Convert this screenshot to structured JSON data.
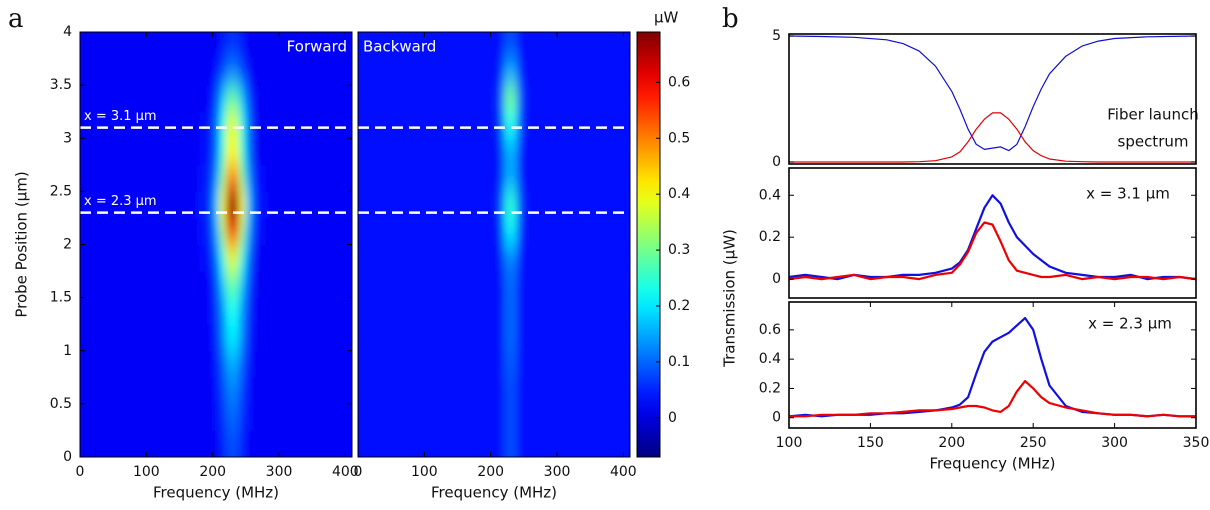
{
  "chart_data": [
    {
      "type": "heatmap",
      "panel": "a",
      "title": "Forward",
      "xlabel": "Frequency (MHz)",
      "ylabel": "Probe Position (μm)",
      "xbins": [
        0,
        180,
        200,
        210,
        220,
        230,
        240,
        250,
        260,
        280,
        410
      ],
      "ybins": [
        0,
        0.25,
        0.5,
        0.75,
        1,
        1.25,
        1.5,
        1.75,
        2,
        2.25,
        2.5,
        2.75,
        3,
        3.25,
        3.5,
        3.75,
        4
      ],
      "z": [
        [
          0.02,
          0.02,
          0.02,
          0.05,
          0.08,
          0.08,
          0.05,
          0.02,
          0.02,
          0.02
        ],
        [
          0.02,
          0.02,
          0.03,
          0.06,
          0.1,
          0.1,
          0.06,
          0.03,
          0.02,
          0.02
        ],
        [
          0.02,
          0.02,
          0.03,
          0.07,
          0.12,
          0.12,
          0.07,
          0.03,
          0.02,
          0.02
        ],
        [
          0.02,
          0.02,
          0.04,
          0.09,
          0.15,
          0.15,
          0.09,
          0.04,
          0.02,
          0.02
        ],
        [
          0.02,
          0.02,
          0.05,
          0.12,
          0.2,
          0.2,
          0.12,
          0.05,
          0.02,
          0.02
        ],
        [
          0.02,
          0.02,
          0.06,
          0.13,
          0.22,
          0.22,
          0.13,
          0.06,
          0.02,
          0.02
        ],
        [
          0.02,
          0.02,
          0.07,
          0.17,
          0.28,
          0.28,
          0.17,
          0.07,
          0.02,
          0.02
        ],
        [
          0.02,
          0.03,
          0.1,
          0.23,
          0.38,
          0.38,
          0.23,
          0.1,
          0.02,
          0.02
        ],
        [
          0.02,
          0.04,
          0.14,
          0.33,
          0.55,
          0.55,
          0.33,
          0.14,
          0.03,
          0.02
        ],
        [
          0.02,
          0.05,
          0.17,
          0.41,
          0.68,
          0.68,
          0.41,
          0.17,
          0.04,
          0.02
        ],
        [
          0.02,
          0.04,
          0.13,
          0.3,
          0.5,
          0.5,
          0.3,
          0.13,
          0.03,
          0.02
        ],
        [
          0.02,
          0.03,
          0.1,
          0.24,
          0.4,
          0.4,
          0.24,
          0.1,
          0.02,
          0.02
        ],
        [
          0.02,
          0.03,
          0.1,
          0.23,
          0.38,
          0.38,
          0.23,
          0.1,
          0.02,
          0.02
        ],
        [
          0.02,
          0.02,
          0.07,
          0.17,
          0.28,
          0.28,
          0.17,
          0.07,
          0.02,
          0.02
        ],
        [
          0.02,
          0.02,
          0.03,
          0.07,
          0.12,
          0.12,
          0.07,
          0.03,
          0.02,
          0.02
        ],
        [
          0.02,
          0.02,
          0.02,
          0.04,
          0.06,
          0.06,
          0.04,
          0.02,
          0.02,
          0.02
        ]
      ],
      "xlim": [
        0,
        410
      ],
      "ylim": [
        0,
        4
      ],
      "xticks": [
        0,
        100,
        200,
        300,
        400
      ],
      "yticks": [
        0,
        0.5,
        1,
        1.5,
        2,
        2.5,
        3,
        3.5,
        4
      ],
      "hlines": [
        3.1,
        2.3
      ],
      "hline_labels": [
        "x = 3.1 μm",
        "x = 2.3 μm"
      ],
      "colormap": "jet",
      "clim": [
        -0.07,
        0.69
      ],
      "cticks": [
        0,
        0.1,
        0.2,
        0.3,
        0.4,
        0.5,
        0.6
      ],
      "clabel": "μW"
    },
    {
      "type": "heatmap",
      "title": "Backward",
      "xlabel": "Frequency (MHz)",
      "xbins": [
        0,
        180,
        200,
        210,
        220,
        230,
        240,
        250,
        260,
        280,
        410
      ],
      "ybins": [
        0,
        0.25,
        0.5,
        0.75,
        1,
        1.25,
        1.5,
        1.75,
        2,
        2.25,
        2.5,
        2.75,
        3,
        3.25,
        3.5,
        3.75,
        4
      ],
      "z": [
        [
          0.03,
          0.03,
          0.03,
          0.03,
          0.08,
          0.08,
          0.03,
          0.03,
          0.03,
          0.03
        ],
        [
          0.03,
          0.03,
          0.03,
          0.03,
          0.08,
          0.08,
          0.03,
          0.03,
          0.03,
          0.03
        ],
        [
          0.03,
          0.03,
          0.03,
          0.03,
          0.08,
          0.08,
          0.03,
          0.03,
          0.03,
          0.03
        ],
        [
          0.03,
          0.03,
          0.03,
          0.03,
          0.09,
          0.09,
          0.03,
          0.03,
          0.03,
          0.03
        ],
        [
          0.03,
          0.03,
          0.03,
          0.03,
          0.1,
          0.1,
          0.03,
          0.03,
          0.03,
          0.03
        ],
        [
          0.03,
          0.03,
          0.03,
          0.03,
          0.1,
          0.1,
          0.03,
          0.03,
          0.03,
          0.03
        ],
        [
          0.03,
          0.03,
          0.03,
          0.03,
          0.1,
          0.1,
          0.03,
          0.03,
          0.03,
          0.03
        ],
        [
          0.03,
          0.03,
          0.03,
          0.04,
          0.12,
          0.12,
          0.04,
          0.03,
          0.03,
          0.03
        ],
        [
          0.03,
          0.03,
          0.03,
          0.06,
          0.2,
          0.2,
          0.06,
          0.03,
          0.03,
          0.03
        ],
        [
          0.03,
          0.03,
          0.03,
          0.08,
          0.25,
          0.25,
          0.08,
          0.03,
          0.03,
          0.03
        ],
        [
          0.03,
          0.03,
          0.03,
          0.05,
          0.15,
          0.15,
          0.05,
          0.03,
          0.03,
          0.03
        ],
        [
          0.03,
          0.03,
          0.03,
          0.05,
          0.15,
          0.15,
          0.05,
          0.03,
          0.03,
          0.03
        ],
        [
          0.03,
          0.03,
          0.03,
          0.07,
          0.22,
          0.22,
          0.07,
          0.03,
          0.03,
          0.03
        ],
        [
          0.03,
          0.03,
          0.03,
          0.09,
          0.3,
          0.3,
          0.09,
          0.03,
          0.03,
          0.03
        ],
        [
          0.03,
          0.03,
          0.03,
          0.05,
          0.15,
          0.15,
          0.05,
          0.03,
          0.03,
          0.03
        ],
        [
          0.03,
          0.03,
          0.03,
          0.03,
          0.08,
          0.08,
          0.03,
          0.03,
          0.03,
          0.03
        ]
      ],
      "xlim": [
        0,
        410
      ],
      "ylim": [
        0,
        4
      ],
      "xticks": [
        0,
        100,
        200,
        300,
        400
      ],
      "hlines": [
        3.1,
        2.3
      ],
      "colormap": "jet",
      "clim": [
        -0.07,
        0.69
      ]
    },
    {
      "type": "line",
      "panel": "b",
      "annotation": [
        "Fiber launch",
        "spectrum"
      ],
      "x": [
        100,
        120,
        140,
        160,
        170,
        180,
        190,
        200,
        205,
        210,
        215,
        220,
        225,
        230,
        235,
        240,
        245,
        250,
        255,
        260,
        270,
        280,
        290,
        300,
        320,
        350
      ],
      "series": [
        {
          "color": "#1010d0",
          "values": [
            5,
            4.98,
            4.95,
            4.85,
            4.7,
            4.4,
            3.8,
            2.8,
            2.1,
            1.3,
            0.7,
            0.5,
            0.55,
            0.6,
            0.45,
            0.7,
            1.4,
            2.2,
            2.9,
            3.5,
            4.2,
            4.6,
            4.8,
            4.9,
            4.97,
            5
          ]
        },
        {
          "color": "#e00000",
          "values": [
            0,
            0,
            0,
            0,
            0,
            0.01,
            0.05,
            0.2,
            0.4,
            0.8,
            1.3,
            1.7,
            1.95,
            1.95,
            1.7,
            1.3,
            0.8,
            0.45,
            0.25,
            0.12,
            0.03,
            0.01,
            0,
            0,
            0,
            0
          ]
        }
      ],
      "xlim": [
        100,
        350
      ],
      "ylim": [
        -0.08,
        5.08
      ],
      "yticks": [
        0,
        5
      ]
    },
    {
      "type": "line",
      "annotation": [
        "x = 3.1 μm"
      ],
      "ylabel": "Transmission (μW)",
      "x": [
        100,
        110,
        120,
        130,
        140,
        150,
        160,
        170,
        180,
        190,
        200,
        205,
        210,
        215,
        220,
        225,
        230,
        235,
        240,
        245,
        250,
        255,
        260,
        270,
        280,
        290,
        300,
        310,
        320,
        330,
        340,
        350
      ],
      "series": [
        {
          "color": "#1010e0",
          "values": [
            0.01,
            0.02,
            0.01,
            0,
            0.02,
            0.01,
            0.01,
            0.02,
            0.02,
            0.03,
            0.05,
            0.08,
            0.14,
            0.24,
            0.34,
            0.4,
            0.36,
            0.27,
            0.2,
            0.16,
            0.12,
            0.09,
            0.06,
            0.03,
            0.02,
            0.01,
            0.01,
            0.02,
            0,
            0.01,
            0.01,
            0
          ]
        },
        {
          "color": "#ee0000",
          "values": [
            0,
            0.01,
            0,
            0.01,
            0.02,
            0,
            0.01,
            0.01,
            0,
            0.02,
            0.03,
            0.07,
            0.13,
            0.22,
            0.27,
            0.26,
            0.18,
            0.09,
            0.04,
            0.03,
            0.02,
            0.01,
            0.01,
            0.02,
            0,
            0.01,
            0,
            0.01,
            0.01,
            0,
            0.01,
            0
          ]
        }
      ],
      "xlim": [
        100,
        350
      ],
      "ylim": [
        -0.09,
        0.53
      ],
      "yticks": [
        0,
        0.2,
        0.4
      ]
    },
    {
      "type": "line",
      "annotation": [
        "x = 2.3 μm"
      ],
      "xlabel": "Frequency (MHz)",
      "x": [
        100,
        110,
        120,
        130,
        140,
        150,
        160,
        170,
        180,
        190,
        200,
        205,
        210,
        215,
        220,
        225,
        230,
        235,
        240,
        245,
        250,
        255,
        260,
        270,
        280,
        290,
        300,
        310,
        320,
        330,
        340,
        350
      ],
      "series": [
        {
          "color": "#1010e0",
          "values": [
            0.01,
            0.02,
            0.01,
            0.02,
            0.02,
            0.02,
            0.03,
            0.03,
            0.04,
            0.05,
            0.07,
            0.09,
            0.14,
            0.3,
            0.45,
            0.52,
            0.55,
            0.58,
            0.63,
            0.68,
            0.6,
            0.4,
            0.22,
            0.08,
            0.04,
            0.03,
            0.02,
            0.02,
            0.01,
            0.02,
            0.01,
            0.01
          ]
        },
        {
          "color": "#ee0000",
          "values": [
            0.01,
            0.01,
            0.02,
            0.02,
            0.02,
            0.03,
            0.03,
            0.04,
            0.05,
            0.05,
            0.06,
            0.07,
            0.08,
            0.08,
            0.07,
            0.05,
            0.04,
            0.08,
            0.18,
            0.25,
            0.2,
            0.14,
            0.1,
            0.07,
            0.05,
            0.03,
            0.02,
            0.02,
            0.01,
            0.02,
            0.01,
            0.01
          ]
        }
      ],
      "xlim": [
        100,
        350
      ],
      "ylim": [
        -0.07,
        0.79
      ],
      "xticks": [
        100,
        150,
        200,
        250,
        300,
        350
      ],
      "yticks": [
        0,
        0.2,
        0.4,
        0.6
      ]
    }
  ]
}
